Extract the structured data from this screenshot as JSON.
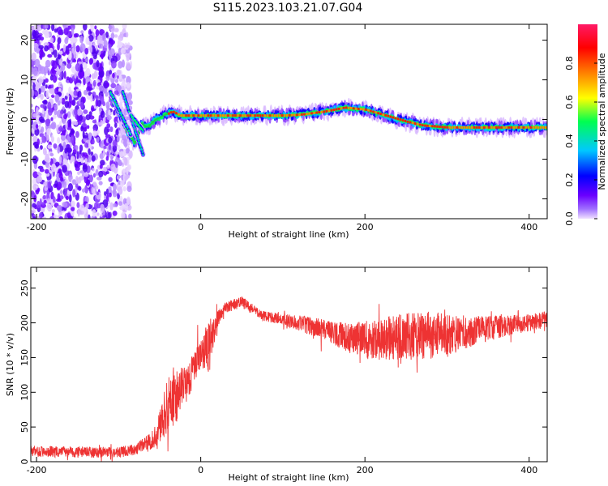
{
  "title": "S115.2023.103.21.07.G04",
  "chart_data": [
    {
      "type": "heatmap",
      "xlabel": "Height of straight line (km)",
      "ylabel": "Frequency (Hz)",
      "xlim": [
        -207,
        422
      ],
      "ylim": [
        -25,
        24
      ],
      "x_ticks": [
        -200,
        0,
        200,
        400
      ],
      "y_ticks": [
        -20,
        -10,
        0,
        10,
        20
      ],
      "colorbar": {
        "label": "Normalized spectral amplitude",
        "range": [
          0,
          1
        ],
        "ticks": [
          "0.0",
          "0.2",
          "0.4",
          "0.6",
          "0.8"
        ],
        "colors": [
          "#f0e0ff",
          "#6a00ff",
          "#0000ff",
          "#00c8ff",
          "#00ff50",
          "#ffff00",
          "#ff8000",
          "#ff0000",
          "#ff1a66"
        ]
      },
      "noise_region_x": [
        -207,
        -100
      ],
      "ridge": {
        "x": [
          -110,
          -100,
          -90,
          -80,
          -72,
          -65,
          -55,
          -45,
          -35,
          -25,
          0,
          50,
          100,
          120,
          150,
          175,
          200,
          225,
          250,
          270,
          300,
          350,
          400,
          422
        ],
        "freq": [
          6,
          2,
          -3,
          -6,
          -1,
          -2,
          0,
          1,
          2,
          1,
          1,
          1,
          1,
          1.2,
          2,
          3,
          2.5,
          1,
          -0.5,
          -1.5,
          -2,
          -2,
          -2,
          -2
        ]
      },
      "branches": [
        {
          "x": [
            -110,
            -85
          ],
          "freq": [
            7,
            -4
          ]
        },
        {
          "x": [
            -95,
            -70
          ],
          "freq": [
            7,
            -9
          ]
        },
        {
          "x": [
            -85,
            -70
          ],
          "freq": [
            1,
            -3
          ]
        }
      ]
    },
    {
      "type": "line",
      "xlabel": "Height of straight line (km)",
      "ylabel": "SNR (10 * v/v)",
      "xlim": [
        -207,
        422
      ],
      "ylim": [
        0,
        280
      ],
      "x_ticks": [
        -200,
        0,
        200,
        400
      ],
      "y_ticks": [
        0,
        50,
        100,
        150,
        200,
        250
      ],
      "line_color": "#ee3333",
      "series": [
        {
          "x": [
            -207,
            -150,
            -100,
            -80,
            -60,
            -50,
            -40,
            -30,
            -20,
            -10,
            0,
            10,
            20,
            30,
            50,
            75,
            100,
            125,
            150,
            175,
            200,
            225,
            250,
            275,
            300,
            325,
            350,
            375,
            400,
            422
          ],
          "mean": [
            15,
            14,
            13,
            18,
            30,
            50,
            80,
            95,
            110,
            130,
            155,
            165,
            205,
            222,
            230,
            210,
            205,
            198,
            190,
            180,
            175,
            178,
            180,
            182,
            183,
            187,
            192,
            196,
            200,
            205
          ],
          "spread": [
            8,
            8,
            8,
            8,
            12,
            25,
            40,
            40,
            30,
            25,
            20,
            40,
            12,
            8,
            8,
            7,
            8,
            12,
            15,
            20,
            28,
            32,
            35,
            35,
            30,
            24,
            18,
            15,
            12,
            12
          ]
        }
      ]
    }
  ]
}
